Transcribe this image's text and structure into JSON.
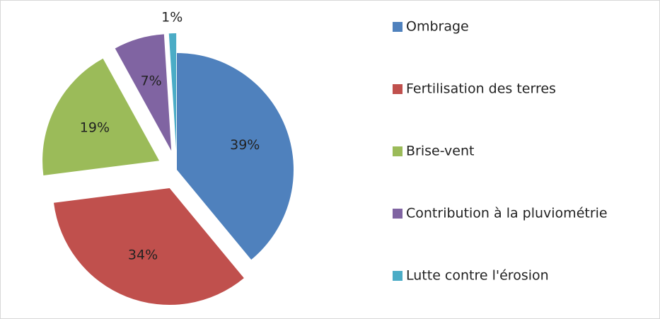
{
  "chart_data": {
    "type": "pie",
    "categories": [
      "Ombrage",
      "Fertilisation des terres",
      "Brise-vent",
      "Contribution à la pluviométrie",
      "Lutte contre l'érosion"
    ],
    "values": [
      39,
      34,
      19,
      7,
      1
    ],
    "value_labels": [
      "39%",
      "34%",
      "19%",
      "7%",
      "1%"
    ],
    "colors": [
      "#4f81bd",
      "#c0504d",
      "#9bbb59",
      "#8064a2",
      "#4bacc6"
    ],
    "legend": "right"
  }
}
